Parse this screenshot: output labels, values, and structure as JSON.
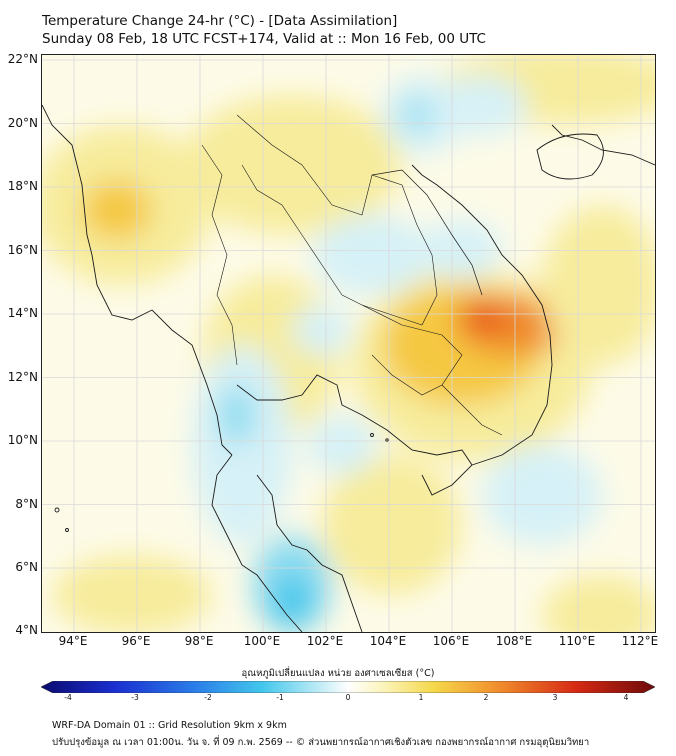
{
  "title": {
    "line1": "Temperature Change 24-hr (°C) - [Data Assimilation]",
    "line2": "Sunday 08 Feb, 18 UTC FCST+174, Valid at :: Mon 16 Feb, 00 UTC"
  },
  "map": {
    "lat_ticks": [
      "22°N",
      "20°N",
      "18°N",
      "16°N",
      "14°N",
      "12°N",
      "10°N",
      "8°N",
      "6°N",
      "4°N"
    ],
    "lon_ticks": [
      "94°E",
      "96°E",
      "98°E",
      "100°E",
      "102°E",
      "104°E",
      "106°E",
      "108°E",
      "110°E",
      "112°E"
    ],
    "lat_range": [
      4,
      22.25
    ],
    "lon_range": [
      93,
      112.4
    ],
    "colors": {
      "background": "#fdfbe8",
      "warm_light": "#f7ec9c",
      "warm_mid": "#f5c842",
      "warm_strong": "#f08a2c",
      "hot": "#e8531e",
      "cool_light": "#d6f1f7",
      "cool_mid": "#8ddcf0",
      "cool_strong": "#43c7ec",
      "coast": "#1a1a1a",
      "grid": "#d8d8d8"
    }
  },
  "colorbar": {
    "label": "อุณหภูมิเปลี่ยนแปลง หน่วย องศาเซลเซียส (°C)",
    "ticks": [
      "-4",
      "-3",
      "-2",
      "-1",
      "0",
      "1",
      "2",
      "3",
      "4"
    ],
    "range": [
      -4,
      4
    ]
  },
  "footer": {
    "line1": "WRF-DA Domain 01 :: Grid Resolution 9km x 9km",
    "line2": "ปรับปรุงข้อมูล ณ เวลา 01:00น. วัน จ. ที่ 09 ก.พ. 2569 -- © ส่วนพยากรณ์อากาศเชิงตัวเลข กองพยากรณ์อากาศ กรมอุตุนิยมวิทยา"
  }
}
